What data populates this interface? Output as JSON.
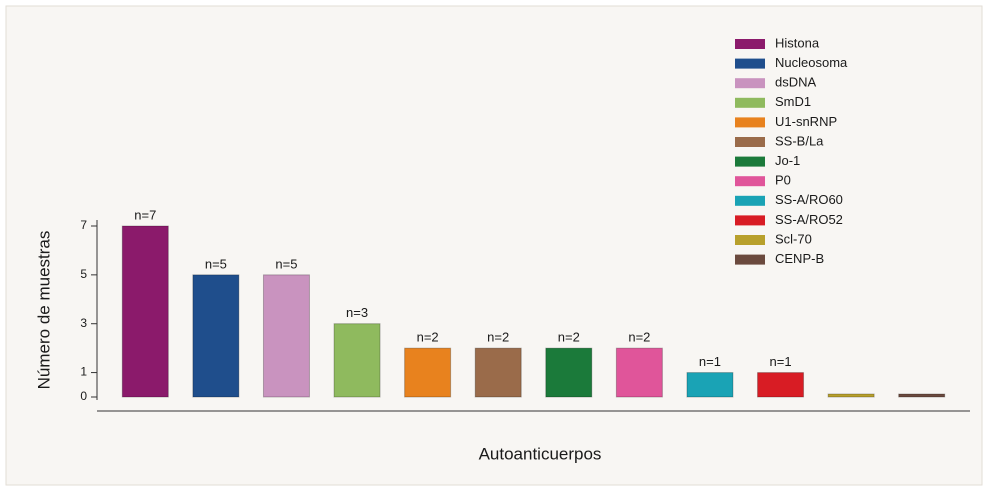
{
  "chart_data": {
    "type": "bar",
    "categories": [
      "Histona",
      "Nucleosoma",
      "dsDNA",
      "SmD1",
      "U1-snRNP",
      "SS-B/La",
      "Jo-1",
      "P0",
      "SS-A/RO60",
      "SS-A/RO52",
      "Scl-70",
      "CENP-B"
    ],
    "values": [
      7,
      5,
      5,
      3,
      2,
      2,
      2,
      2,
      1,
      1,
      0,
      0
    ],
    "value_labels": [
      "n=7",
      "n=5",
      "n=5",
      "n=3",
      "n=2",
      "n=2",
      "n=2",
      "n=2",
      "n=1",
      "n=1",
      null,
      null
    ],
    "colors": [
      "#8b1a6b",
      "#1f4e8c",
      "#c993bf",
      "#8fba5e",
      "#e8821e",
      "#9a6b4a",
      "#1b7a3a",
      "#e0559a",
      "#1aa3b5",
      "#d81c24",
      "#b8a02c",
      "#6b4a3e"
    ],
    "ylim": [
      0,
      7
    ],
    "yticks": [
      0,
      1,
      3,
      5,
      7
    ],
    "y_label": "Número de muestras",
    "x_label": "Autoanticuerpos",
    "legend": "top-right"
  }
}
